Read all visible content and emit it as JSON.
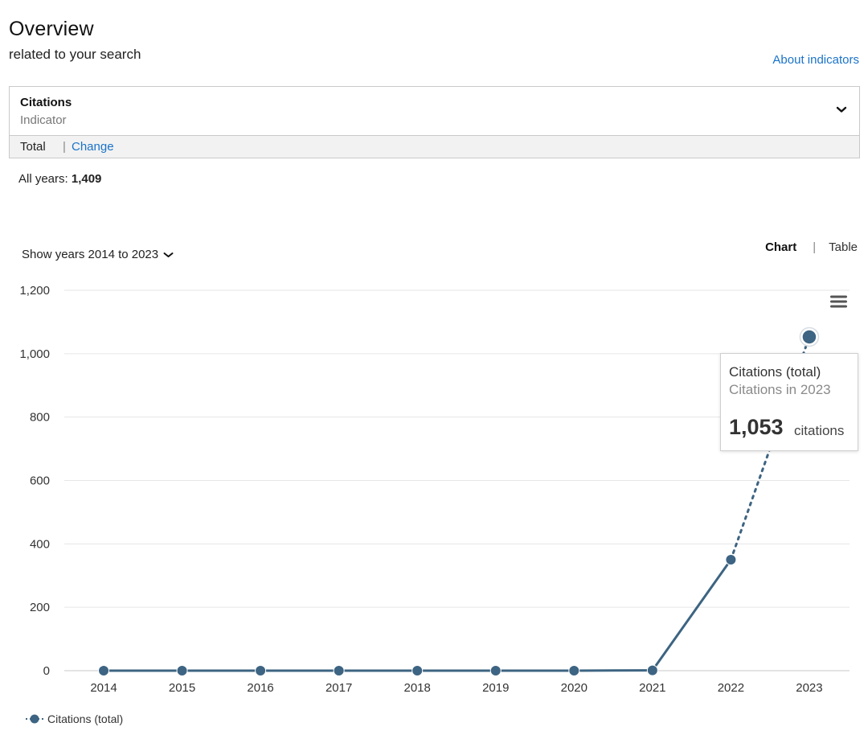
{
  "header": {
    "title": "Overview",
    "subtitle": "related to your search",
    "about_link": "About indicators"
  },
  "indicator": {
    "name": "Citations",
    "label": "Indicator",
    "mode": "Total",
    "separator": "|",
    "change_link": "Change"
  },
  "summary": {
    "all_years_label": "All years:",
    "all_years_value": "1,409"
  },
  "controls": {
    "year_range": "Show years 2014 to 2023",
    "chart_tab": "Chart",
    "separator": "|",
    "table_tab": "Table"
  },
  "tooltip": {
    "series": "Citations (total)",
    "subtitle": "Citations in 2023",
    "value": "1,053",
    "unit": "citations"
  },
  "colors": {
    "series": "#3d6482",
    "link": "#1a73c8",
    "grid": "#e6e6e6"
  },
  "chart_data": {
    "type": "line",
    "x": [
      "2014",
      "2015",
      "2016",
      "2017",
      "2018",
      "2019",
      "2020",
      "2021",
      "2022",
      "2023"
    ],
    "series": [
      {
        "name": "Citations (total)",
        "values": [
          0,
          0,
          0,
          0,
          0,
          0,
          0,
          1,
          350,
          1053
        ]
      }
    ],
    "ylim": [
      0,
      1200
    ],
    "yticks": [
      0,
      200,
      400,
      600,
      800,
      1000,
      1200
    ],
    "ytick_labels": [
      "0",
      "200",
      "400",
      "600",
      "800",
      "1,000",
      "1,200"
    ],
    "grid": true,
    "last_segment_dotted": true,
    "legend_position": "bottom-left"
  }
}
